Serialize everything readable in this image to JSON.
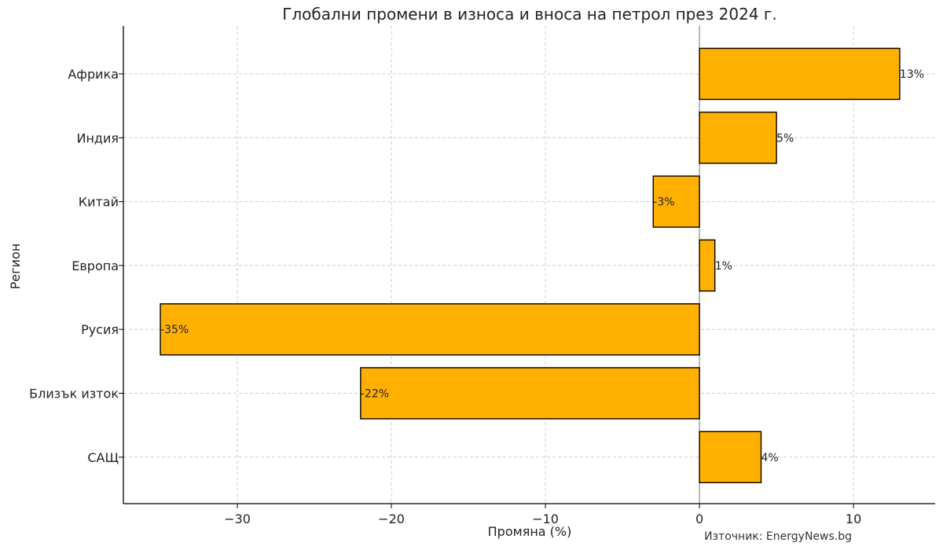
{
  "chart_data": {
    "type": "bar",
    "orientation": "horizontal",
    "title": "Глобални промени в износа и вноса на петрол през 2024 г.",
    "xlabel": "Промяна (%)",
    "ylabel": "Регион",
    "categories": [
      "Африка",
      "Индия",
      "Китай",
      "Европа",
      "Русия",
      "Близък изток",
      "САЩ"
    ],
    "values": [
      13,
      5,
      -3,
      1,
      -35,
      -22,
      4
    ],
    "data_labels": [
      "13%",
      "5%",
      "-3%",
      "1%",
      "-35%",
      "-22%",
      "4%"
    ],
    "xlim": [
      -37.4,
      15.3
    ],
    "xticks": [
      -30,
      -20,
      -10,
      0,
      10
    ],
    "xtick_labels": [
      "−30",
      "−20",
      "−10",
      "0",
      "10"
    ],
    "grid": true,
    "bar_color": "#FFB000",
    "source": "Източник: EnergyNews.bg"
  }
}
